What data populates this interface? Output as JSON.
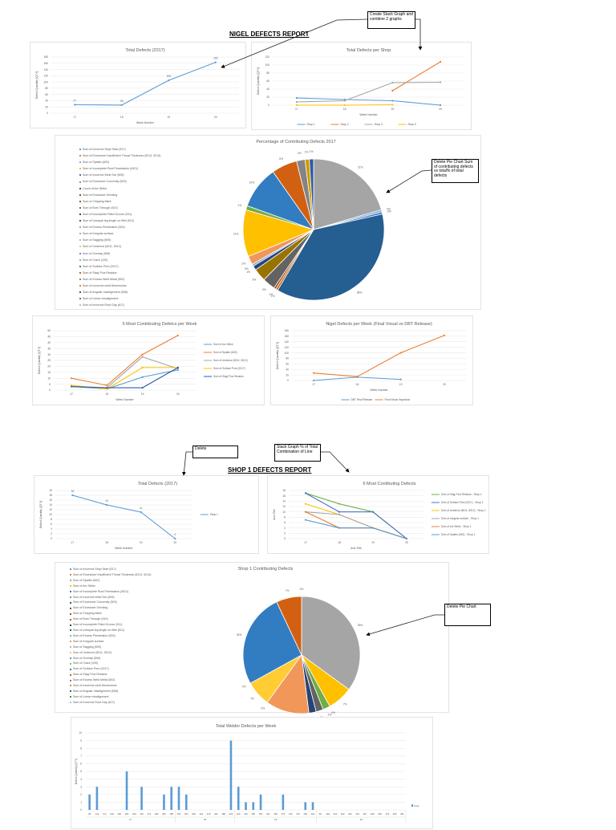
{
  "nigel_report": {
    "title": "NIGEL DEFECTS REPORT"
  },
  "shop1_report": {
    "title": "SHOP 1 DEFECTS REPORT"
  },
  "notes": {
    "stack_combine": "Create Stack Graph and combine 2 graphs",
    "delete_pie_total": "Delete Pie Chart Sum of contributing defects vs total% of total defects",
    "delete": "Delete",
    "stack_percent": "Stack Graph % of Total Combination of Line",
    "delete_pie": "Delete Pie Chart"
  },
  "chart_data": [
    {
      "type": "line",
      "title": "Total Defects (2017)",
      "xlabel": "Week Number",
      "ylabel": "Defect Quantity [QTY]",
      "categories": [
        "17",
        "18",
        "19",
        "20"
      ],
      "ylim": [
        0,
        180
      ],
      "yticks": [
        "0",
        "20",
        "40",
        "60",
        "80",
        "100",
        "120",
        "140",
        "160",
        "180"
      ],
      "data_labels": true,
      "legend": "none",
      "grid": true,
      "series": [
        {
          "values": [
            27,
            26,
            105,
            163
          ],
          "labels": [
            "27",
            "26",
            "105",
            "163"
          ],
          "color": "#5b9bd5"
        }
      ]
    },
    {
      "type": "line",
      "title": "Total Defects per Shop",
      "xlabel": "Week Number",
      "ylabel": "Defect Quantity [QTY]",
      "categories": [
        "17",
        "18",
        "19",
        "20"
      ],
      "ylim": [
        0,
        120
      ],
      "yticks": [
        "0",
        "20",
        "40",
        "60",
        "80",
        "100",
        "120"
      ],
      "data_labels": false,
      "legend": "bottom",
      "grid": true,
      "series": [
        {
          "name": "Shop 1",
          "values": [
            18,
            14,
            11,
            0
          ],
          "color": "#5b9bd5"
        },
        {
          "name": "Shop 2",
          "values": [
            null,
            null,
            36,
            108
          ],
          "color": "#ed7d31"
        },
        {
          "name": "Shop 3",
          "values": [
            8,
            11,
            56,
            57
          ],
          "color": "#a5a5a5"
        },
        {
          "name": "Shop 5",
          "values": [
            0,
            0,
            1,
            null
          ],
          "color": "#ffc000"
        }
      ]
    },
    {
      "type": "pie",
      "title": "Percentage of Contributing Defects 2017",
      "legend": "left",
      "legend_items": [
        {
          "name": "Sum of Incorrect Stop/ Start (517)",
          "color": "#5b9bd5"
        },
        {
          "name": "Sum of Excessive/ Insufficient Throat Thickness (5213, 5214)",
          "color": "#ed7d31"
        },
        {
          "name": "Sum of Spatter (602)",
          "color": "#a5a5a5"
        },
        {
          "name": "Sum of Incomplete Root Penetration (4021)",
          "color": "#ffc000"
        },
        {
          "name": "Sum of Incorrect Weld Toe (505)",
          "color": "#4472c4"
        },
        {
          "name": "Sum of Excessive Convexity (503)",
          "color": "#70ad47"
        },
        {
          "name": "Count of Arc Strike",
          "color": "#255e91"
        },
        {
          "name": "Sum of Excessive Grinding",
          "color": "#9e480e"
        },
        {
          "name": "Sum of Chipping Mark",
          "color": "#636363"
        },
        {
          "name": "Sum of Burn Through (510)",
          "color": "#997300"
        },
        {
          "name": "Sum of Incomplete Filled Groove (511)",
          "color": "#264478"
        },
        {
          "name": "Sum of Unequal leg length on fillet (512)",
          "color": "#43682b"
        },
        {
          "name": "Sum of Excess Penetration (504)",
          "color": "#7cafdd"
        },
        {
          "name": "Sum of Irregular surface",
          "color": "#f1975a"
        },
        {
          "name": "Sum of Sagging (509)",
          "color": "#b7b7b7"
        },
        {
          "name": "Sum of Undercut (5011, 5012)",
          "color": "#ffcd33"
        },
        {
          "name": "Sum of Overlap (506)",
          "color": "#698ed0"
        },
        {
          "name": "Sum of Crack (100)",
          "color": "#8cc168"
        },
        {
          "name": "Sum of Surface Pore (2017)",
          "color": "#327dc2"
        },
        {
          "name": "Sum of Slag/ Flux Residue",
          "color": "#d26012"
        },
        {
          "name": "Sum of Excess Weld Metal (502)",
          "color": "#848484"
        },
        {
          "name": "Sum of Incorrect weld Dimensions",
          "color": "#cc9a00"
        },
        {
          "name": "Sum of Angular misalignment (508)",
          "color": "#335aa1"
        },
        {
          "name": "Sum of Linear misalignment",
          "color": "#5a8a39"
        },
        {
          "name": "Sum of Incorrect Root Gap (617)",
          "color": "#a1c2e4"
        }
      ],
      "slices": [
        {
          "value": 21,
          "label": "21%",
          "color": "#a5a5a5"
        },
        {
          "value": 0.5,
          "label": "0%",
          "color": "#7cafdd"
        },
        {
          "value": 0.5,
          "label": "0%",
          "color": "#4472c4"
        },
        {
          "value": 38,
          "label": "38%",
          "color": "#255e91"
        },
        {
          "value": 0.5,
          "label": "1%",
          "color": "#d26012"
        },
        {
          "value": 0.5,
          "label": "1%",
          "color": "#9e480e"
        },
        {
          "value": 3,
          "label": "3%",
          "color": "#636363"
        },
        {
          "value": 3,
          "label": "3%",
          "color": "#997300"
        },
        {
          "value": 1,
          "label": "1%",
          "color": "#264478"
        },
        {
          "value": 0.5,
          "label": "0%",
          "color": "#7cafdd"
        },
        {
          "value": 2,
          "label": "2%",
          "color": "#f1975a"
        },
        {
          "value": 11,
          "label": "11%",
          "color": "#ffc000"
        },
        {
          "value": 1,
          "label": "1%",
          "color": "#70ad47"
        },
        {
          "value": 10,
          "label": "10%",
          "color": "#327dc2"
        },
        {
          "value": 6,
          "label": "6%",
          "color": "#d26012"
        },
        {
          "value": 2,
          "label": "2%",
          "color": "#848484"
        },
        {
          "value": 1,
          "label": "1%",
          "color": "#cc9a00"
        },
        {
          "value": 1,
          "label": "1%",
          "color": "#335aa1"
        }
      ]
    },
    {
      "type": "line",
      "title": "5 Most Contributing Defetcs per Week",
      "xlabel": "Week Number",
      "ylabel": "Defect Quantity [QTY]",
      "categories": [
        "17",
        "18",
        "19",
        "20"
      ],
      "ylim": [
        0,
        50
      ],
      "yticks": [
        "0",
        "5",
        "10",
        "15",
        "20",
        "25",
        "30",
        "35",
        "40",
        "45",
        "50"
      ],
      "data_labels": false,
      "legend": "right",
      "grid": true,
      "series": [
        {
          "name": "Sum of Arc Strike",
          "values": [
            3,
            1,
            11,
            17
          ],
          "color": "#5b9bd5"
        },
        {
          "name": "Sum of Spatter (602)",
          "values": [
            10,
            4,
            30,
            46
          ],
          "color": "#ed7d31"
        },
        {
          "name": "Sum of Undercut (5011, 5012)",
          "values": [
            3,
            2,
            28,
            18
          ],
          "color": "#a5a5a5"
        },
        {
          "name": "Sum of Surface Pore (2017)",
          "values": [
            4,
            1,
            19,
            19
          ],
          "color": "#ffc000"
        },
        {
          "name": "Sum of Slag/ Flux Residue",
          "values": [
            3,
            2,
            2,
            19
          ],
          "color": "#2e5ea8"
        }
      ]
    },
    {
      "type": "line",
      "title": "Nigel Defects per Week (Final Visual vs DBT Release)",
      "xlabel": "Week Number",
      "ylabel": "Defect Quantity [QTY]",
      "categories": [
        "17",
        "18",
        "19",
        "20"
      ],
      "ylim": [
        0,
        180
      ],
      "yticks": [
        "0",
        "20",
        "40",
        "60",
        "80",
        "100",
        "120",
        "140",
        "160",
        "180"
      ],
      "data_labels": false,
      "legend": "bottom",
      "grid": true,
      "series": [
        {
          "name": "DBT Final Release",
          "values": [
            0,
            12,
            4,
            null
          ],
          "color": "#5b9bd5"
        },
        {
          "name": "Final Visual Inspection",
          "values": [
            27,
            14,
            100,
            163
          ],
          "color": "#ed7d31"
        }
      ]
    },
    {
      "type": "line",
      "title": "Total Defects (2017)",
      "xlabel": "Week Number",
      "ylabel": "Defect Quantity [QTY]",
      "categories": [
        "17",
        "18",
        "19",
        "20"
      ],
      "ylim": [
        0,
        20
      ],
      "yticks": [
        "0",
        "2",
        "4",
        "6",
        "8",
        "10",
        "12",
        "14",
        "16",
        "18",
        "20"
      ],
      "data_labels": true,
      "legend": "right",
      "grid": true,
      "series": [
        {
          "name": "Shop 1",
          "values": [
            18,
            14,
            11,
            0
          ],
          "labels": [
            "18",
            "14",
            "11",
            "0"
          ],
          "color": "#5b9bd5"
        }
      ]
    },
    {
      "type": "line",
      "title": "6 Most Contibuting Defects",
      "xlabel": "Axis Title",
      "ylabel": "Axis Title",
      "categories": [
        "17",
        "18",
        "19",
        "20"
      ],
      "ylim": [
        0,
        18
      ],
      "yticks": [
        "0",
        "2",
        "4",
        "6",
        "8",
        "10",
        "12",
        "14",
        "16",
        "18"
      ],
      "data_labels": false,
      "legend": "right",
      "grid": true,
      "series": [
        {
          "name": "Sum of Slag/ Flux Residue - Shop 1",
          "values": [
            17,
            13,
            10,
            0
          ],
          "color": "#70ad47"
        },
        {
          "name": "Sum of Surface Pore (2017) - Shop 1",
          "values": [
            17,
            10,
            10,
            0
          ],
          "color": "#4472c4"
        },
        {
          "name": "Sum of Undercut (5011, 5012) - Shop 1",
          "values": [
            13,
            9,
            4,
            0
          ],
          "color": "#ffc000"
        },
        {
          "name": "Sum of Irregular surface - Shop 1",
          "values": [
            10,
            9,
            4,
            0
          ],
          "color": "#a5a5a5"
        },
        {
          "name": "Sum of Arc Strike - Shop 1",
          "values": [
            10,
            4,
            4,
            0
          ],
          "color": "#ed7d31"
        },
        {
          "name": "Sum of Spatter (602) - Shop 1",
          "values": [
            7,
            4,
            4,
            0
          ],
          "color": "#5b9bd5"
        }
      ]
    },
    {
      "type": "pie",
      "title": "Shop 1 Contributing Defects",
      "legend": "left",
      "legend_items": [
        {
          "name": "Sum of Incorrect Stop/ Start (517)",
          "color": "#5b9bd5"
        },
        {
          "name": "Sum of Excessive/ Insufficient Throat Thickness (5213, 5214)",
          "color": "#ed7d31"
        },
        {
          "name": "Sum of Spatter (602)",
          "color": "#a5a5a5"
        },
        {
          "name": "Sum of Arc Strike",
          "color": "#ffc000"
        },
        {
          "name": "Sum of Incomplete Root Penetration (4021)",
          "color": "#4472c4"
        },
        {
          "name": "Sum of Incorrect Weld Toe (505)",
          "color": "#70ad47"
        },
        {
          "name": "Sum of Excessive Convexity (503)",
          "color": "#255e91"
        },
        {
          "name": "Sum of Excessive Grinding",
          "color": "#9e480e"
        },
        {
          "name": "Sum of Chipping Mark",
          "color": "#636363"
        },
        {
          "name": "Sum of Burn Through (510)",
          "color": "#997300"
        },
        {
          "name": "Sum of Incomplete Filled Groove (511)",
          "color": "#264478"
        },
        {
          "name": "Sum of Unequal leg length on fillet (512)",
          "color": "#43682b"
        },
        {
          "name": "Sum of Excess Penetration (504)",
          "color": "#7cafdd"
        },
        {
          "name": "Sum of Irregular surface",
          "color": "#f1975a"
        },
        {
          "name": "Sum of Sagging (509)",
          "color": "#b7b7b7"
        },
        {
          "name": "Sum of Undercut (5011, 5012)",
          "color": "#ffcd33"
        },
        {
          "name": "Sum of Overlap (506)",
          "color": "#698ed0"
        },
        {
          "name": "Sum of Crack (100)",
          "color": "#8cc168"
        },
        {
          "name": "Sum of Surface Pore (2017)",
          "color": "#327dc2"
        },
        {
          "name": "Sum of Slag/ Flux Residue",
          "color": "#d26012"
        },
        {
          "name": "Sum of Excess Weld Metal (502)",
          "color": "#848484"
        },
        {
          "name": "Sum of Incorrect weld Dimensions",
          "color": "#cc9a00"
        },
        {
          "name": "Sum of Angular misalignment (508)",
          "color": "#335aa1"
        },
        {
          "name": "Sum of Linear misalignment",
          "color": "#5a8a39"
        },
        {
          "name": "Sum of Incorrect Root Gap (617)",
          "color": "#a1c2e4"
        }
      ],
      "slices": [
        {
          "value": 35,
          "label": "35%",
          "color": "#a5a5a5"
        },
        {
          "value": 7,
          "label": "7%",
          "color": "#ffc000"
        },
        {
          "value": 0,
          "label": "0%",
          "color": "#4472c4"
        },
        {
          "value": 2,
          "label": "2%",
          "color": "#70ad47"
        },
        {
          "value": 2,
          "label": "2%",
          "color": "#636363"
        },
        {
          "value": 0,
          "label": "0%",
          "color": "#997300"
        },
        {
          "value": 2,
          "label": "2%",
          "color": "#264478"
        },
        {
          "value": 0,
          "label": "0%",
          "color": "#7cafdd"
        },
        {
          "value": 12,
          "label": "12%",
          "color": "#f1975a"
        },
        {
          "value": 0,
          "label": "0%",
          "color": "#b7b7b7"
        },
        {
          "value": 7,
          "label": "7%",
          "color": "#ffcd33"
        },
        {
          "value": 0,
          "label": "0%",
          "color": "#698ed0"
        },
        {
          "value": 26,
          "label": "26%",
          "color": "#327dc2"
        },
        {
          "value": 7,
          "label": "7%",
          "color": "#d26012"
        },
        {
          "value": 0,
          "label": "0%",
          "color": "#848484"
        }
      ]
    },
    {
      "type": "bar",
      "title": "Total Welder Defects per Week",
      "ylabel": "Defect Quantity [QTY]",
      "ylim": [
        0,
        10
      ],
      "yticks": [
        "0",
        "1",
        "2",
        "3",
        "4",
        "5",
        "6",
        "7",
        "8",
        "9",
        "10"
      ],
      "legend": "right",
      "legend_label": "Total",
      "color": "#5b9bd5",
      "grid": true,
      "groups": [
        {
          "label": "17",
          "categories": [
            "99",
            "144",
            "172",
            "199",
            "256",
            "350",
            "369",
            "416",
            "473",
            "480",
            "481",
            "488"
          ],
          "values": [
            2,
            3,
            0,
            0,
            0,
            5,
            0,
            3,
            0,
            0,
            2,
            3
          ]
        },
        {
          "label": "18",
          "categories": [
            "350",
            "354",
            "369",
            "416",
            "475",
            "481",
            "488",
            "620"
          ],
          "values": [
            3,
            2,
            0,
            0,
            0,
            0,
            0,
            9
          ]
        },
        {
          "label": "19",
          "categories": [
            "199",
            "336",
            "350",
            "354",
            "361",
            "369",
            "376",
            "416",
            "475",
            "480",
            "481"
          ],
          "values": [
            3,
            1,
            1,
            2,
            0,
            0,
            2,
            0,
            0,
            1,
            1
          ]
        },
        {
          "label": "20",
          "categories": [
            "99",
            "199",
            "334",
            "350",
            "354",
            "361",
            "367",
            "369",
            "384",
            "475",
            "480",
            "481"
          ],
          "values": [
            0,
            0,
            0,
            0,
            0,
            0,
            0,
            0,
            0,
            0,
            0,
            0
          ]
        }
      ]
    }
  ]
}
